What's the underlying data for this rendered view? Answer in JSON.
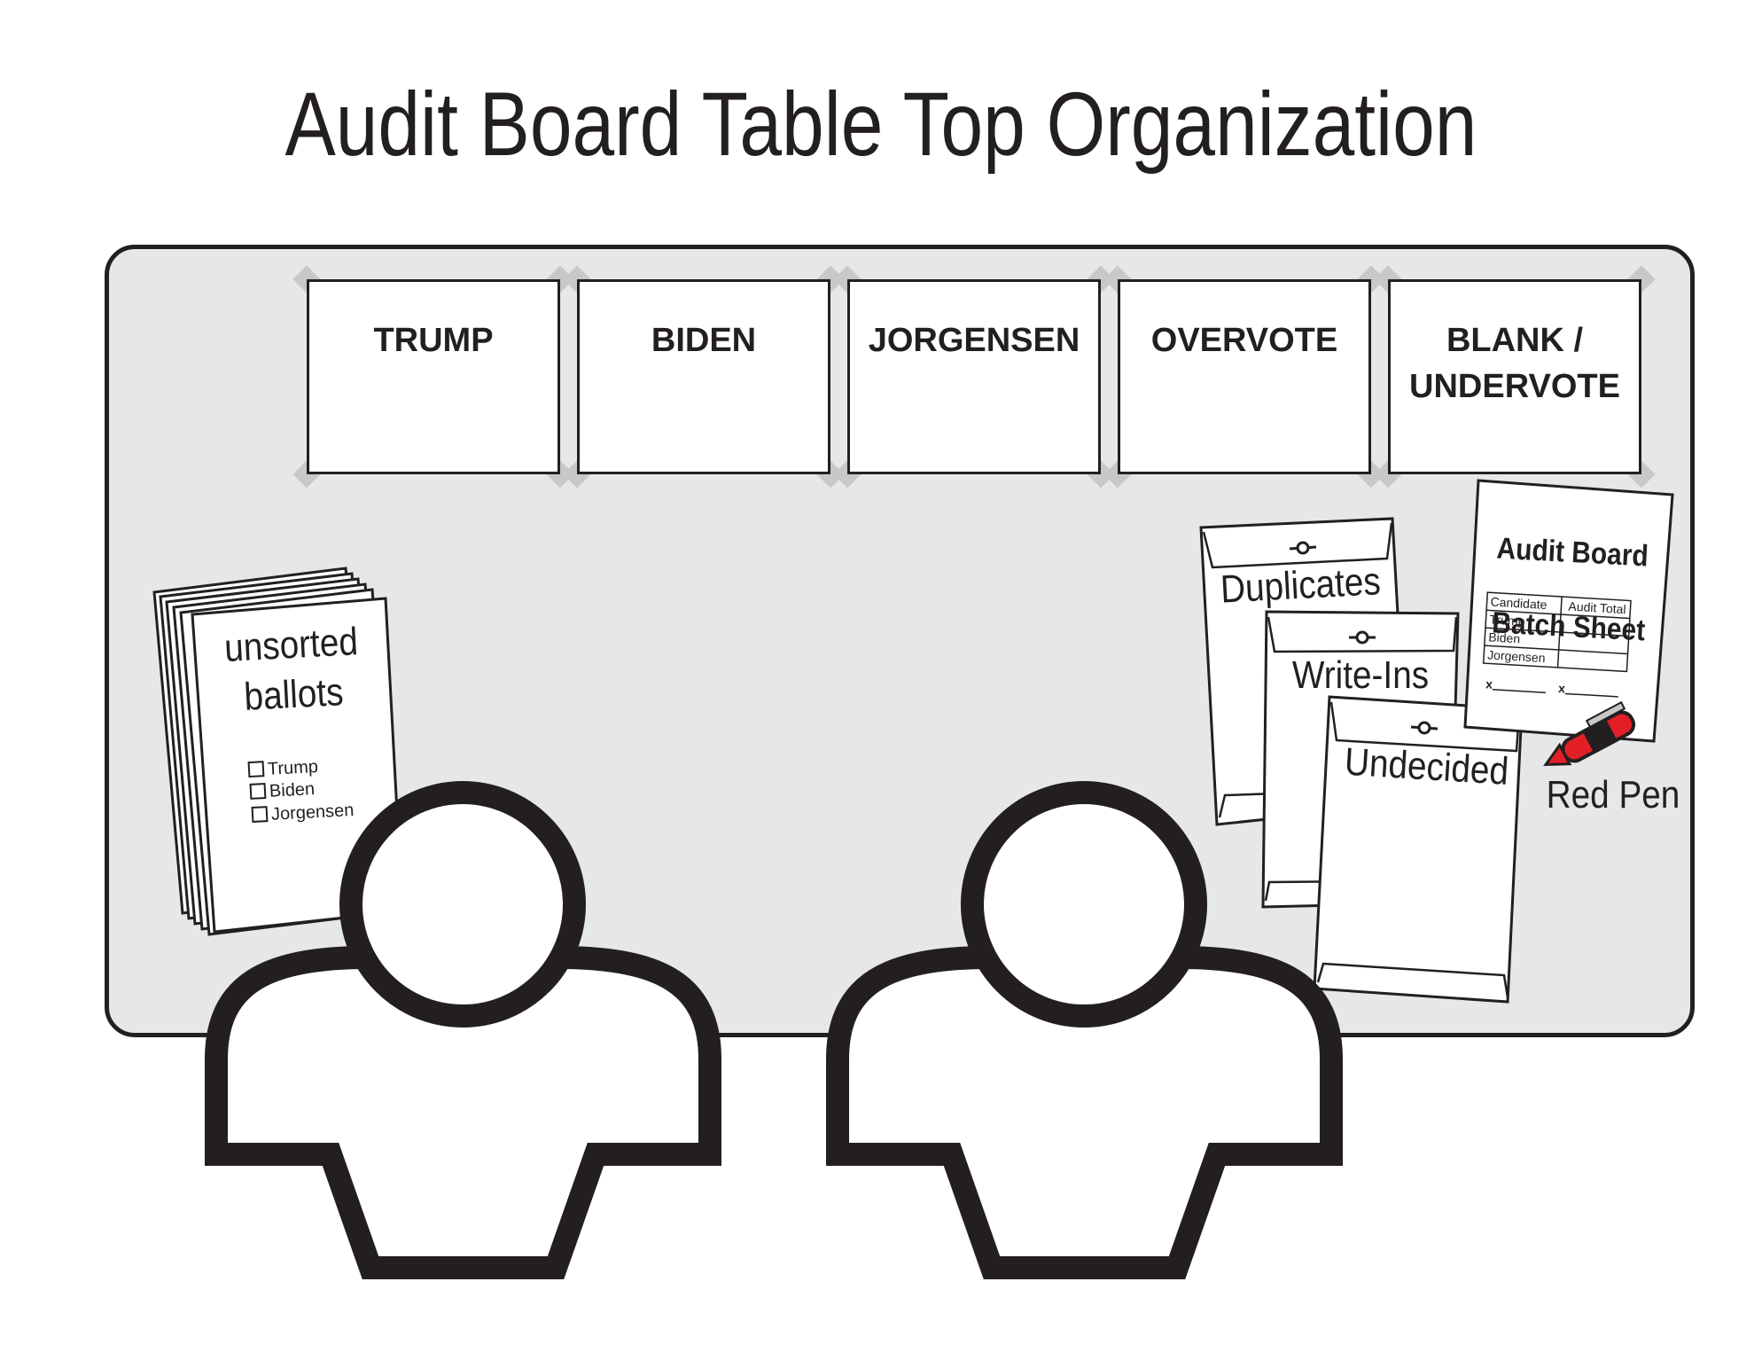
{
  "title": "Audit Board Table Top Organization",
  "sort_piles": [
    {
      "label": "TRUMP"
    },
    {
      "label": "BIDEN"
    },
    {
      "label": "JORGENSEN"
    },
    {
      "label": "OVERVOTE"
    },
    {
      "label": "BLANK /\nUNDERVOTE"
    }
  ],
  "ballot_stack": {
    "label": "unsorted\nballots",
    "line1": "unsorted",
    "line2": "ballots",
    "options": [
      "Trump",
      "Biden",
      "Jorgensen"
    ]
  },
  "envelopes": [
    {
      "label": "Duplicates"
    },
    {
      "label": "Write-Ins"
    },
    {
      "label": "Undecided"
    }
  ],
  "batch_sheet": {
    "title_line1": "Audit Board",
    "title_line2": "Batch Sheet",
    "col_candidate": "Candidate",
    "col_total": "Audit Total",
    "rows": [
      "Trump",
      "Biden",
      "Jorgensen"
    ],
    "sign1": "x",
    "sign2": "x"
  },
  "pen": {
    "label": "Red Pen",
    "color": "#e21f26"
  },
  "colors": {
    "table": "#e6e7e8",
    "outline": "#231f20"
  },
  "auditors": [
    {
      "icon": "person-icon"
    },
    {
      "icon": "person-icon"
    }
  ]
}
